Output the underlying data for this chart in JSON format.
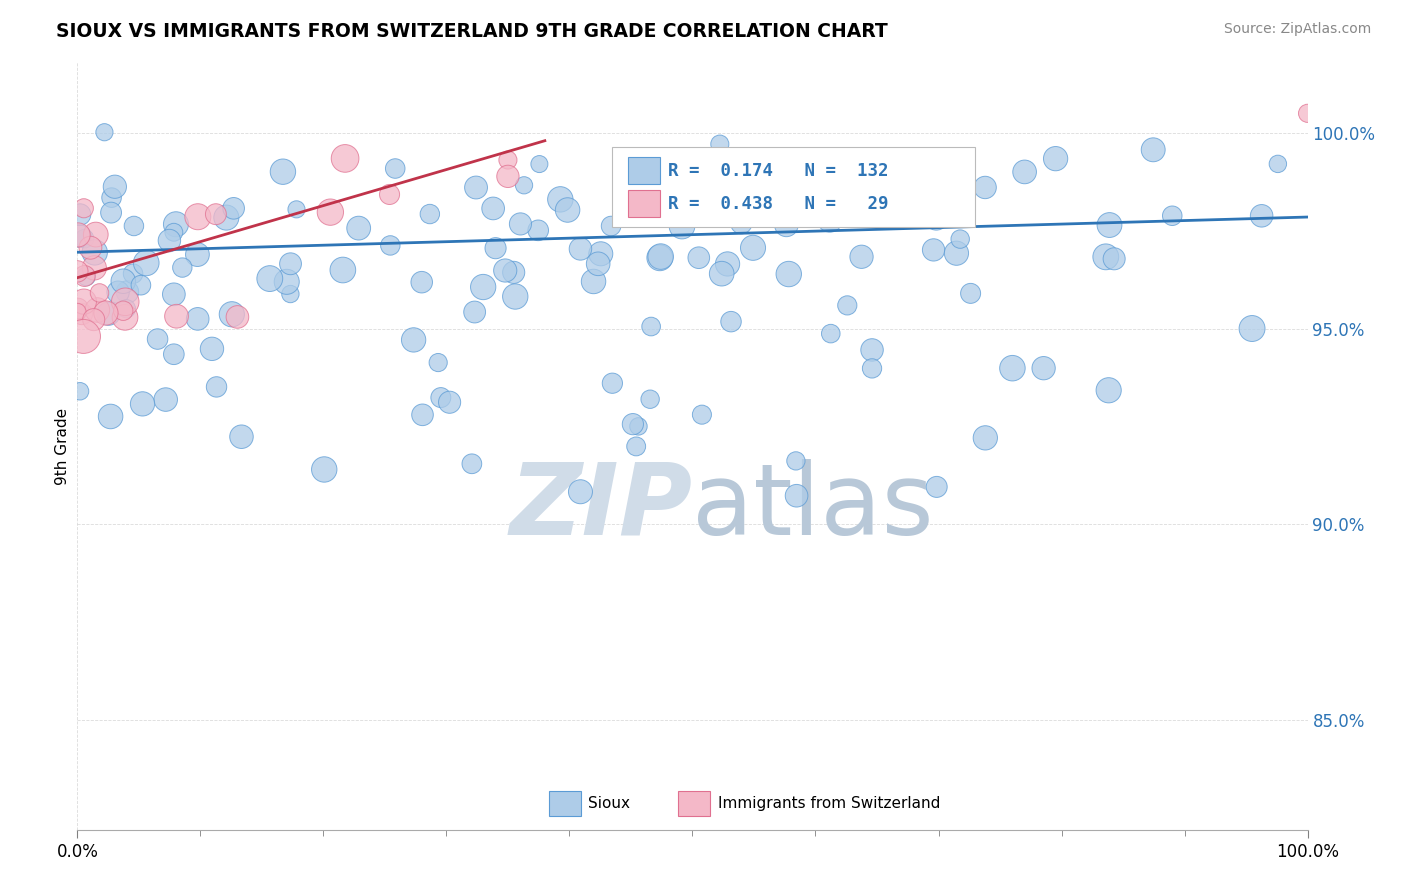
{
  "title": "SIOUX VS IMMIGRANTS FROM SWITZERLAND 9TH GRADE CORRELATION CHART",
  "source_text": "Source: ZipAtlas.com",
  "ylabel": "9th Grade",
  "ytick_values": [
    0.85,
    0.9,
    0.95,
    1.0
  ],
  "xmin": 0.0,
  "xmax": 1.0,
  "ymin": 0.822,
  "ymax": 1.018,
  "legend_R_blue": "0.174",
  "legend_N_blue": "132",
  "legend_R_pink": "0.438",
  "legend_N_pink": "29",
  "blue_color": "#aecce8",
  "blue_edge_color": "#5b9bd5",
  "pink_color": "#f4b8c8",
  "pink_edge_color": "#e07090",
  "trendline_blue_color": "#2e75b6",
  "trendline_pink_color": "#c0334a",
  "watermark_color": "#d0dce8",
  "blue_trend_x0": 0.0,
  "blue_trend_x1": 1.0,
  "blue_trend_y0": 0.9695,
  "blue_trend_y1": 0.9785,
  "pink_trend_x0": 0.0,
  "pink_trend_x1": 0.38,
  "pink_trend_y0": 0.963,
  "pink_trend_y1": 0.998
}
